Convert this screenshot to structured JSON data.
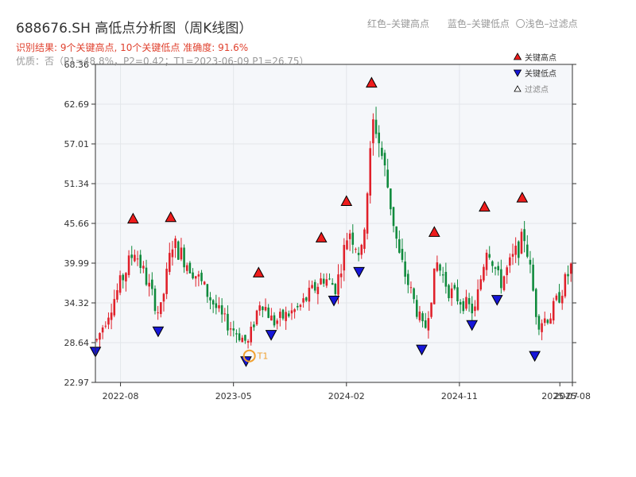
{
  "header": {
    "title": "688676.SH 高低点分析图（周K线图）",
    "hint_red": "红色–关键高点",
    "hint_blue": "蓝色–关键低点",
    "hint_light": "〇浅色–过滤点",
    "result_line": "识别结果: 9个关键高点, 10个关键低点   准确度: 91.6%",
    "quality_line": "优质：否（P1=48.8%，P2=0.42；T1=2023-06-09 P1=26.75）"
  },
  "colors": {
    "up": "#e0202a",
    "down": "#0f8a3c",
    "high_marker": "#ee1c1c",
    "low_marker": "#1616d8",
    "t1_marker": "#f0a030",
    "plot_bg": "#f5f7fa",
    "grid": "#e3e6ea"
  },
  "legend": {
    "items": [
      {
        "label": "关键高点",
        "icon": "red-up-triangle"
      },
      {
        "label": "关键低点",
        "icon": "blue-down-triangle"
      },
      {
        "label": "过滤点",
        "icon": "hollow-up-triangle"
      }
    ]
  },
  "chart_data": {
    "type": "candlestick",
    "title": "688676.SH 高低点分析图（周K线图）",
    "xlabel": "",
    "ylabel": "",
    "ylim": [
      22.97,
      68.36
    ],
    "y_ticks": [
      "68.36",
      "62.69",
      "57.01",
      "51.34",
      "45.66",
      "39.99",
      "34.32",
      "28.64",
      "22.97"
    ],
    "x_range": [
      "2022-06",
      "2025-08"
    ],
    "x_ticks": [
      {
        "label": "2022-08",
        "date": "2022-08"
      },
      {
        "label": "2023-05",
        "date": "2023-05"
      },
      {
        "label": "2024-02",
        "date": "2024-02"
      },
      {
        "label": "2024-11",
        "date": "2024-11"
      },
      {
        "label": "2025-07",
        "date": "2025-07"
      },
      {
        "label": "2025-08",
        "date": "2025-08"
      }
    ],
    "grid": true,
    "legend_position": "top-right",
    "t1_label": "T1",
    "t1": {
      "date": "2023-06-09",
      "value": 26.75
    },
    "key_highs": [
      {
        "date": "2022-09",
        "value": 45.6
      },
      {
        "date": "2022-12",
        "value": 45.8
      },
      {
        "date": "2023-07",
        "value": 37.9
      },
      {
        "date": "2023-12",
        "value": 42.9
      },
      {
        "date": "2024-02",
        "value": 48.1
      },
      {
        "date": "2024-04",
        "value": 65.0
      },
      {
        "date": "2024-09",
        "value": 43.7
      },
      {
        "date": "2025-01",
        "value": 47.3
      },
      {
        "date": "2025-04",
        "value": 48.6
      }
    ],
    "key_lows": [
      {
        "date": "2022-06",
        "value": 28.1
      },
      {
        "date": "2022-11",
        "value": 31.0
      },
      {
        "date": "2023-06",
        "value": 26.75
      },
      {
        "date": "2023-08",
        "value": 30.5
      },
      {
        "date": "2024-01",
        "value": 35.4
      },
      {
        "date": "2024-03",
        "value": 39.5
      },
      {
        "date": "2024-08",
        "value": 28.4
      },
      {
        "date": "2024-12",
        "value": 31.9
      },
      {
        "date": "2025-02",
        "value": 35.5
      },
      {
        "date": "2025-05",
        "value": 27.5
      }
    ],
    "anchors": [
      {
        "date": "2022-06",
        "value": 29.0
      },
      {
        "date": "2022-09",
        "value": 42.0
      },
      {
        "date": "2022-11",
        "value": 32.5
      },
      {
        "date": "2022-12",
        "value": 43.0
      },
      {
        "date": "2023-02",
        "value": 38.0
      },
      {
        "date": "2023-04",
        "value": 32.0
      },
      {
        "date": "2023-06",
        "value": 28.5
      },
      {
        "date": "2023-07",
        "value": 35.0
      },
      {
        "date": "2023-08",
        "value": 31.5
      },
      {
        "date": "2023-10",
        "value": 33.5
      },
      {
        "date": "2023-12",
        "value": 38.0
      },
      {
        "date": "2024-01",
        "value": 36.5
      },
      {
        "date": "2024-02",
        "value": 45.0
      },
      {
        "date": "2024-03",
        "value": 41.0
      },
      {
        "date": "2024-04",
        "value": 61.0
      },
      {
        "date": "2024-05",
        "value": 52.0
      },
      {
        "date": "2024-06",
        "value": 41.0
      },
      {
        "date": "2024-08",
        "value": 30.0
      },
      {
        "date": "2024-09",
        "value": 40.0
      },
      {
        "date": "2024-10",
        "value": 36.0
      },
      {
        "date": "2024-12",
        "value": 33.0
      },
      {
        "date": "2025-01",
        "value": 43.0
      },
      {
        "date": "2025-02",
        "value": 37.0
      },
      {
        "date": "2025-04",
        "value": 44.0
      },
      {
        "date": "2025-05",
        "value": 31.5
      },
      {
        "date": "2025-06",
        "value": 32.5
      },
      {
        "date": "2025-07",
        "value": 36.5
      },
      {
        "date": "2025-08",
        "value": 41.0
      }
    ]
  }
}
